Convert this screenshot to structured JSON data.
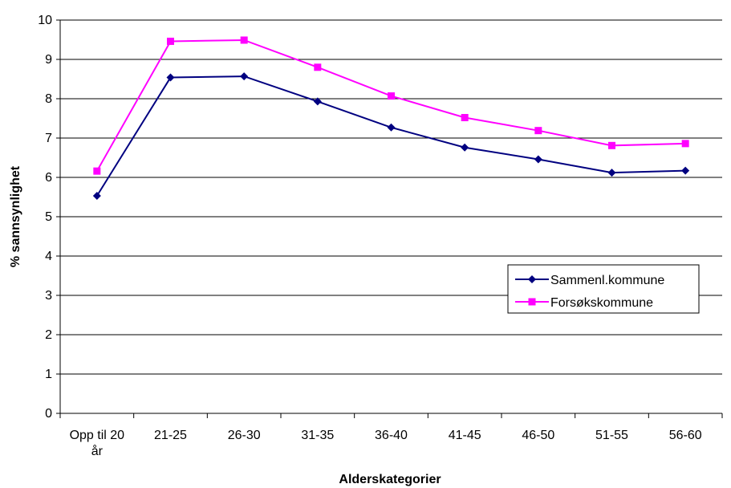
{
  "chart_data": {
    "type": "line",
    "title": "",
    "xlabel": "Alderskategorier",
    "ylabel": "% sannsynlighet",
    "ylim": [
      0,
      10
    ],
    "y_ticks": [
      0,
      1,
      2,
      3,
      4,
      5,
      6,
      7,
      8,
      9,
      10
    ],
    "grid": true,
    "legend_position": "right",
    "categories": [
      "Opp til 20 år",
      "21-25",
      "26-30",
      "31-35",
      "36-40",
      "41-45",
      "46-50",
      "51-55",
      "56-60"
    ],
    "series": [
      {
        "name": "Sammenl.kommune",
        "color": "#000080",
        "marker": "diamond",
        "values": [
          5.53,
          8.54,
          8.57,
          7.93,
          7.27,
          6.76,
          6.46,
          6.12,
          6.17
        ]
      },
      {
        "name": "Forsøkskommune",
        "color": "#FF00FF",
        "marker": "square",
        "values": [
          6.16,
          9.46,
          9.49,
          8.8,
          8.07,
          7.52,
          7.19,
          6.81,
          6.86
        ]
      }
    ]
  }
}
